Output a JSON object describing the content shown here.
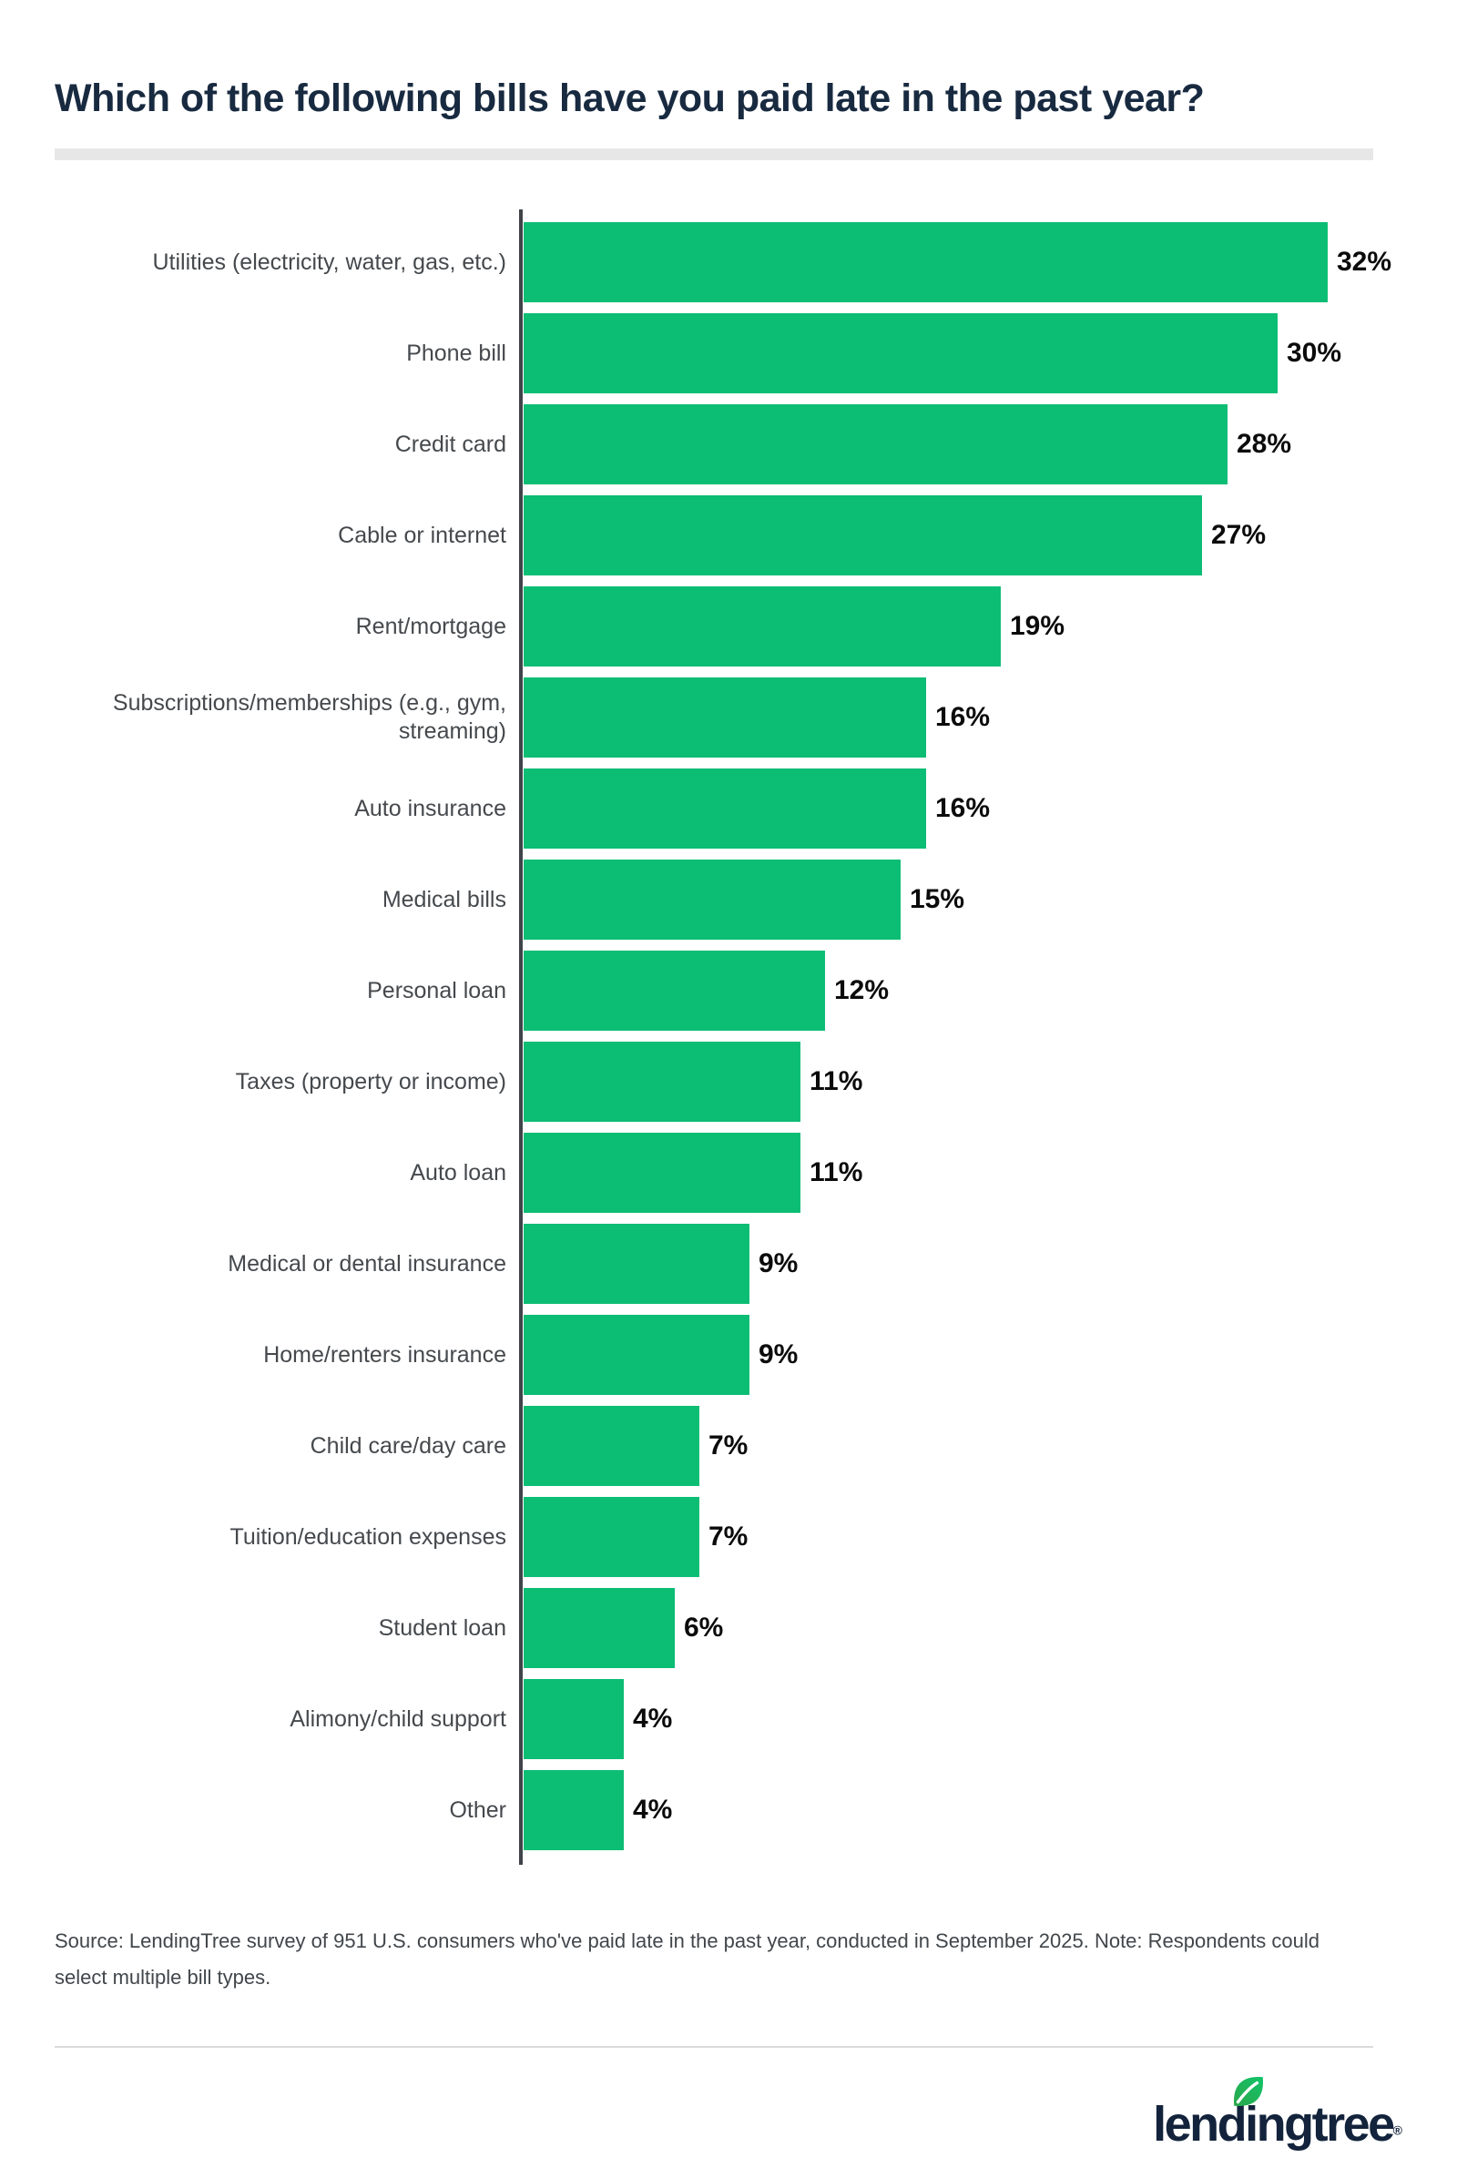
{
  "chart_data": {
    "type": "bar",
    "orientation": "horizontal",
    "title": "Which of the following bills have you paid late in the past year?",
    "categories": [
      "Utilities (electricity, water, gas, etc.)",
      "Phone bill",
      "Credit card",
      "Cable or internet",
      "Rent/mortgage",
      "Subscriptions/memberships (e.g., gym,\nstreaming)",
      "Auto insurance",
      "Medical bills",
      "Personal loan",
      "Taxes (property or income)",
      "Auto loan",
      "Medical or dental insurance",
      "Home/renters insurance",
      "Child care/day care",
      "Tuition/education expenses",
      "Student loan",
      "Alimony/child support",
      "Other"
    ],
    "values": [
      32,
      30,
      28,
      27,
      19,
      16,
      16,
      15,
      12,
      11,
      11,
      9,
      9,
      7,
      7,
      6,
      4,
      4
    ],
    "value_labels": [
      "32%",
      "30%",
      "28%",
      "27%",
      "19%",
      "16%",
      "16%",
      "15%",
      "12%",
      "11%",
      "11%",
      "9%",
      "9%",
      "7%",
      "7%",
      "6%",
      "4%",
      "4%"
    ],
    "value_suffix": "%",
    "xlabel": "",
    "ylabel": "",
    "xlim": [
      0,
      32
    ],
    "grid": false,
    "legend": "none"
  },
  "source": {
    "text": "Source: LendingTree survey of 951 U.S. consumers who've paid late in the past year, conducted in September 2025. Note: Respondents could\nselect multiple bill types."
  },
  "footer": {
    "logo_text": "lendingtree",
    "registered_mark": "®"
  },
  "colors": {
    "bar": "#0cbd74",
    "title": "#182a40",
    "category_label": "#45494d",
    "value_label": "#0b0b0b",
    "axis": "#3f4449",
    "divider": "#e7e7e7",
    "footer_divider": "#dbdbdb",
    "source_text": "#41464b",
    "logo_navy": "#13233c",
    "leaf_green_dark": "#2aa64b",
    "leaf_green_light": "#12c468"
  }
}
